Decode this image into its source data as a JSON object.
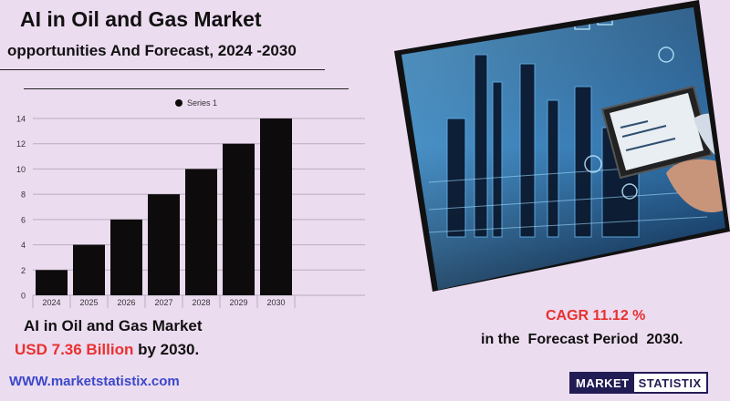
{
  "header": {
    "title": "AI in Oil and Gas Market",
    "subtitle": "opportunities And Forecast, 2024 -2030"
  },
  "chart_data": {
    "type": "bar",
    "categories": [
      "2024",
      "2025",
      "2026",
      "2027",
      "2028",
      "2029",
      "2030"
    ],
    "series": [
      {
        "name": "Series 1",
        "values": [
          2,
          4,
          6,
          8,
          10,
          12,
          14
        ]
      }
    ],
    "yticks": [
      "0",
      "2",
      "4",
      "6",
      "8",
      "10",
      "12",
      "14"
    ],
    "ylim": [
      0,
      14
    ],
    "legend_position": "top-center",
    "grid": true,
    "bar_color": "#0d0b0c"
  },
  "summary": {
    "market_label": "AI in Oil and Gas Market",
    "market_value": "USD 7.36 Billion",
    "market_value_suffix": " by 2030.",
    "cagr": "CAGR 11.12 %",
    "forecast_text": "in the  Forecast Period  2030."
  },
  "footer": {
    "website": "WWW.marketstatistix.com",
    "logo_left": "MARKET",
    "logo_right": "STATISTIX"
  },
  "photo": {
    "subject": "industrial-refinery-tablet-image"
  },
  "colors": {
    "background": "#ecdcf0",
    "accent_red": "#e8312f",
    "link_blue": "#3b47c9",
    "logo_navy": "#221c55"
  }
}
